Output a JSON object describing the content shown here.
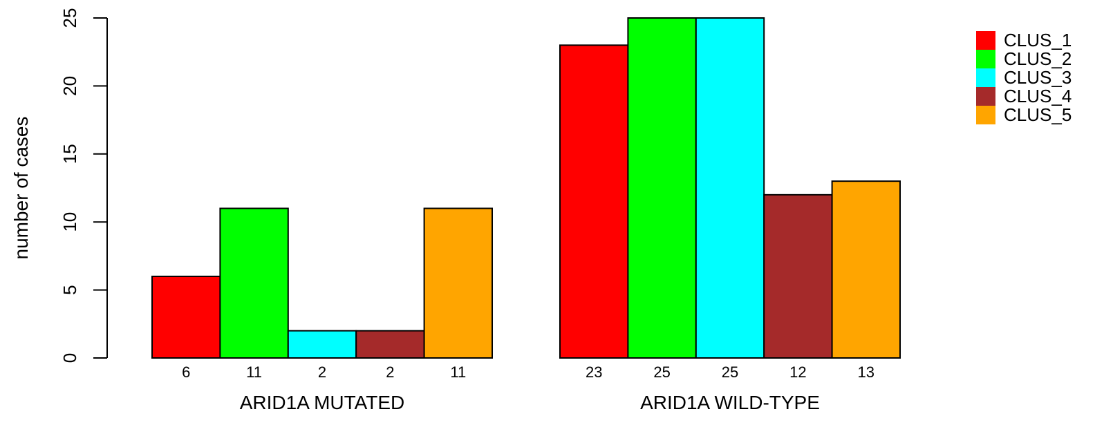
{
  "chart_data": {
    "type": "bar",
    "ylabel": "number of cases",
    "ylim": [
      0,
      25
    ],
    "yticks": [
      0,
      5,
      10,
      15,
      20,
      25
    ],
    "categories": [
      "ARID1A MUTATED",
      "ARID1A WILD-TYPE"
    ],
    "series": [
      {
        "name": "CLUS_1",
        "color": "#ff0000",
        "values": [
          6,
          23
        ]
      },
      {
        "name": "CLUS_2",
        "color": "#00ff00",
        "values": [
          11,
          25
        ]
      },
      {
        "name": "CLUS_3",
        "color": "#00ffff",
        "values": [
          2,
          25
        ]
      },
      {
        "name": "CLUS_4",
        "color": "#a52a2a",
        "values": [
          2,
          12
        ]
      },
      {
        "name": "CLUS_5",
        "color": "#ffa500",
        "values": [
          11,
          13
        ]
      }
    ],
    "grid": false,
    "legend": "top-right"
  }
}
